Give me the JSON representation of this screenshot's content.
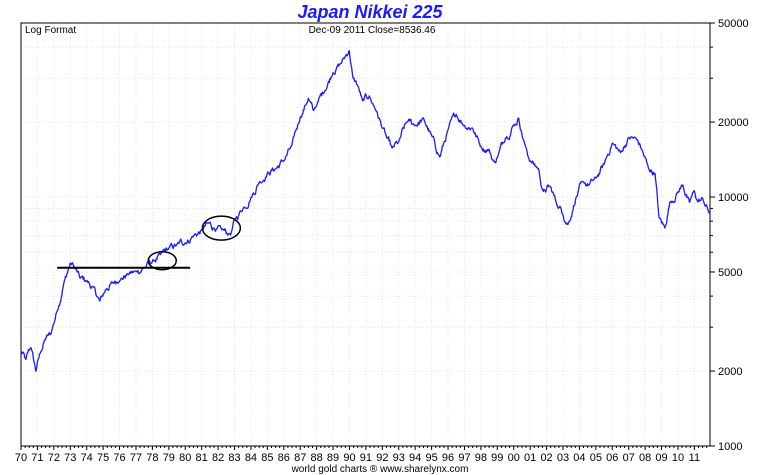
{
  "chart_data": {
    "type": "line",
    "title": "Japan Nikkei 225",
    "subtitle_left": "Log Format",
    "subtitle_center": "Dec-09  2011   Close=8536.46",
    "footer": "world gold charts ® www.sharelynx.com",
    "scale": "log",
    "ylim": [
      1000,
      50000
    ],
    "yticks": [
      1000,
      2000,
      5000,
      10000,
      20000,
      50000
    ],
    "ytick_labels": [
      "1000",
      "2000",
      "5000",
      "10000",
      "20000",
      "50000"
    ],
    "xlim": [
      1970.0,
      2011.95
    ],
    "xticks": [
      1970,
      1971,
      1972,
      1973,
      1974,
      1975,
      1976,
      1977,
      1978,
      1979,
      1980,
      1981,
      1982,
      1983,
      1984,
      1985,
      1986,
      1987,
      1988,
      1989,
      1990,
      1991,
      1992,
      1993,
      1994,
      1995,
      1996,
      1997,
      1998,
      1999,
      2000,
      2001,
      2002,
      2003,
      2004,
      2005,
      2006,
      2007,
      2008,
      2009,
      2010,
      2011
    ],
    "xtick_labels": [
      "70",
      "71",
      "72",
      "73",
      "74",
      "75",
      "76",
      "77",
      "78",
      "79",
      "80",
      "81",
      "82",
      "83",
      "84",
      "85",
      "86",
      "87",
      "88",
      "89",
      "90",
      "91",
      "92",
      "93",
      "94",
      "95",
      "96",
      "97",
      "98",
      "99",
      "00",
      "01",
      "02",
      "03",
      "04",
      "05",
      "06",
      "07",
      "08",
      "09",
      "10",
      "11"
    ],
    "line_color": "#1a1aff",
    "series": [
      {
        "name": "Nikkei 225",
        "x": [
          1970.0,
          1970.3,
          1970.6,
          1970.9,
          1971.2,
          1971.5,
          1971.8,
          1972.2,
          1972.6,
          1973.0,
          1973.2,
          1973.6,
          1974.0,
          1974.4,
          1974.8,
          1975.2,
          1975.6,
          1976.0,
          1976.5,
          1977.0,
          1977.5,
          1978.0,
          1978.5,
          1979.0,
          1979.5,
          1980.0,
          1980.5,
          1981.0,
          1981.4,
          1981.8,
          1982.2,
          1982.6,
          1982.8,
          1983.0,
          1983.5,
          1984.0,
          1984.5,
          1985.0,
          1985.5,
          1986.0,
          1986.5,
          1987.0,
          1987.5,
          1987.8,
          1988.0,
          1988.5,
          1989.0,
          1989.5,
          1989.99,
          1990.2,
          1990.5,
          1990.8,
          1991.2,
          1991.6,
          1992.0,
          1992.3,
          1992.6,
          1993.0,
          1993.5,
          1994.0,
          1994.5,
          1995.0,
          1995.5,
          1996.0,
          1996.5,
          1997.0,
          1997.5,
          1998.0,
          1998.5,
          1998.8,
          1999.0,
          1999.5,
          2000.0,
          2000.3,
          2000.7,
          2001.0,
          2001.5,
          2001.8,
          2002.2,
          2002.6,
          2003.0,
          2003.3,
          2003.8,
          2004.2,
          2004.6,
          2005.0,
          2005.5,
          2006.0,
          2006.5,
          2007.0,
          2007.5,
          2007.8,
          2008.2,
          2008.6,
          2008.85,
          2009.2,
          2009.5,
          2010.0,
          2010.3,
          2010.7,
          2011.0,
          2011.2,
          2011.5,
          2011.95
        ],
        "values": [
          2400,
          2200,
          2500,
          2000,
          2400,
          2700,
          2800,
          3500,
          4500,
          5400,
          5300,
          4700,
          4600,
          4300,
          3800,
          4300,
          4500,
          4700,
          4900,
          5000,
          5200,
          5500,
          5800,
          6200,
          6400,
          6600,
          7000,
          7300,
          7800,
          7500,
          7300,
          7100,
          7200,
          8000,
          9000,
          10000,
          11500,
          12500,
          13000,
          14000,
          16000,
          21000,
          25000,
          22000,
          23500,
          27000,
          32000,
          34500,
          38915,
          30000,
          28000,
          24000,
          25500,
          22500,
          19000,
          17000,
          15500,
          16500,
          20000,
          19500,
          20500,
          17500,
          14500,
          18500,
          21500,
          19500,
          19000,
          16000,
          15500,
          13800,
          14500,
          17500,
          19500,
          20800,
          16000,
          14000,
          13000,
          10500,
          11000,
          9500,
          8600,
          7800,
          10000,
          11300,
          11200,
          11800,
          13500,
          16500,
          15000,
          17300,
          17000,
          15500,
          13000,
          12500,
          8200,
          7500,
          9500,
          10500,
          11200,
          9400,
          10500,
          9600,
          9800,
          8536
        ]
      }
    ],
    "annotations": {
      "resistance_line": {
        "x_start": 1972.2,
        "x_end": 1980.3,
        "value": 5200
      },
      "ellipses": [
        {
          "x_center": 1978.6,
          "value_center": 5550
        },
        {
          "x_center": 1982.2,
          "value_center": 7500
        }
      ]
    }
  }
}
